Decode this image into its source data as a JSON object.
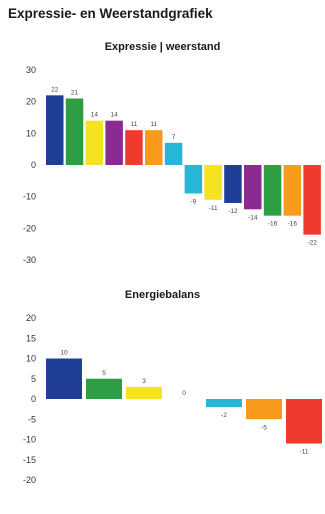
{
  "page": {
    "title": "Expressie- en Weerstandgrafiek"
  },
  "chart_data": [
    {
      "type": "bar",
      "title": "Expressie | weerstand",
      "xlabel": "",
      "ylabel": "",
      "ylim": [
        -30,
        30
      ],
      "yticks": [
        -30,
        -20,
        -10,
        0,
        10,
        20,
        30
      ],
      "grid": false,
      "legend": "none",
      "values": [
        22,
        21,
        14,
        14,
        11,
        11,
        7,
        -9,
        -11,
        -12,
        -14,
        -16,
        -16,
        -22
      ],
      "colors": [
        "#1f3f96",
        "#2e9e44",
        "#f5e321",
        "#8a2b91",
        "#ee3b2e",
        "#f79a1e",
        "#27b6d6",
        "#27b6d6",
        "#f5e321",
        "#1f3f96",
        "#8a2b91",
        "#2e9e44",
        "#f79a1e",
        "#ee3b2e"
      ]
    },
    {
      "type": "bar",
      "title": "Energiebalans",
      "xlabel": "",
      "ylabel": "",
      "ylim": [
        -20,
        20
      ],
      "yticks": [
        -20,
        -15,
        -10,
        -5,
        0,
        5,
        10,
        15,
        20
      ],
      "grid": false,
      "legend": "none",
      "values": [
        10,
        5,
        3,
        0,
        -2,
        -5,
        -11
      ],
      "colors": [
        "#1f3f96",
        "#2e9e44",
        "#f5e321",
        "#8a2b91",
        "#27b6d6",
        "#f79a1e",
        "#ee3b2e"
      ]
    }
  ]
}
